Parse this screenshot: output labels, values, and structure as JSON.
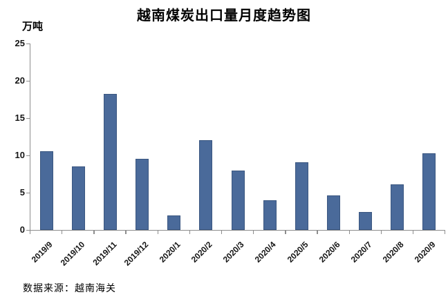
{
  "chart_data": {
    "type": "bar",
    "title": "越南煤炭出口量月度趋势图",
    "ylabel": "万吨",
    "xlabel": "",
    "source_note": "数据来源：越南海关",
    "categories": [
      "2019/9",
      "2019/10",
      "2019/11",
      "2019/12",
      "2020/1",
      "2020/2",
      "2020/3",
      "2020/4",
      "2020/5",
      "2020/6",
      "2020/7",
      "2020/8",
      "2020/9"
    ],
    "values": [
      10.6,
      8.5,
      18.2,
      9.5,
      1.9,
      12.0,
      8.0,
      4.0,
      9.1,
      4.6,
      2.4,
      6.1,
      10.3
    ],
    "ylim": [
      0,
      25
    ],
    "yticks": [
      0,
      5,
      10,
      15,
      20,
      25
    ],
    "grid": false,
    "legend": false,
    "bar_color": "#4a6a9a",
    "axis_color": "#8c8c8c",
    "text_color": "#000000"
  }
}
